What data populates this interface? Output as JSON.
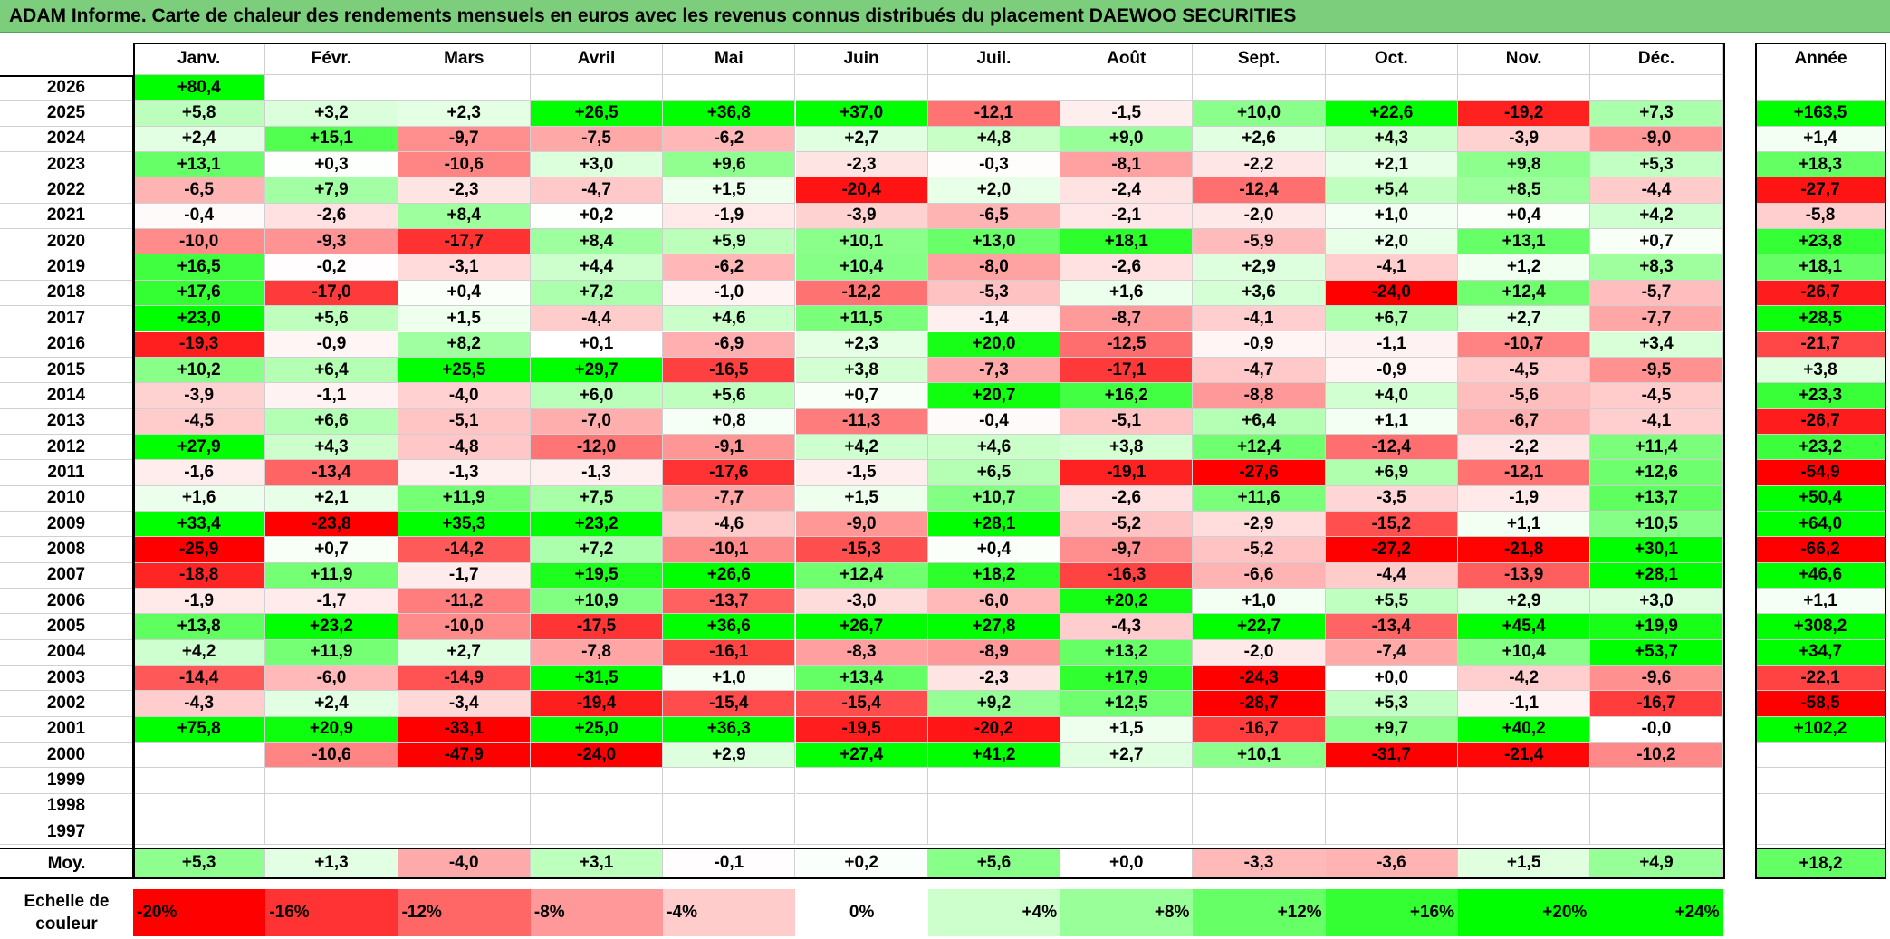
{
  "title": "ADAM Informe. Carte de chaleur des rendements mensuels en euros avec les revenus connus distribués du placement DAEWOO SECURITIES",
  "chart_data": {
    "type": "heatmap",
    "title": "ADAM Informe. Carte de chaleur des rendements mensuels en euros avec les revenus connus distribués du placement DAEWOO SECURITIES",
    "months": [
      "Janv.",
      "Févr.",
      "Mars",
      "Avril",
      "Mai",
      "Juin",
      "Juil.",
      "Août",
      "Sept.",
      "Oct.",
      "Nov.",
      "Déc."
    ],
    "year_header": "Année",
    "avg_label": "Moy.",
    "rows": [
      {
        "year": "2026",
        "values": [
          "+80,4",
          "",
          "",
          "",
          "",
          "",
          "",
          "",
          "",
          "",
          "",
          ""
        ],
        "annual": ""
      },
      {
        "year": "2025",
        "values": [
          "+5,8",
          "+3,2",
          "+2,3",
          "+26,5",
          "+36,8",
          "+37,0",
          "-12,1",
          "-1,5",
          "+10,0",
          "+22,6",
          "-19,2",
          "+7,3"
        ],
        "annual": "+163,5"
      },
      {
        "year": "2024",
        "values": [
          "+2,4",
          "+15,1",
          "-9,7",
          "-7,5",
          "-6,2",
          "+2,7",
          "+4,8",
          "+9,0",
          "+2,6",
          "+4,3",
          "-3,9",
          "-9,0"
        ],
        "annual": "+1,4"
      },
      {
        "year": "2023",
        "values": [
          "+13,1",
          "+0,3",
          "-10,6",
          "+3,0",
          "+9,6",
          "-2,3",
          "-0,3",
          "-8,1",
          "-2,2",
          "+2,1",
          "+9,8",
          "+5,3"
        ],
        "annual": "+18,3"
      },
      {
        "year": "2022",
        "values": [
          "-6,5",
          "+7,9",
          "-2,3",
          "-4,7",
          "+1,5",
          "-20,4",
          "+2,0",
          "-2,4",
          "-12,4",
          "+5,4",
          "+8,5",
          "-4,4"
        ],
        "annual": "-27,7"
      },
      {
        "year": "2021",
        "values": [
          "-0,4",
          "-2,6",
          "+8,4",
          "+0,2",
          "-1,9",
          "-3,9",
          "-6,5",
          "-2,1",
          "-2,0",
          "+1,0",
          "+0,4",
          "+4,2"
        ],
        "annual": "-5,8"
      },
      {
        "year": "2020",
        "values": [
          "-10,0",
          "-9,3",
          "-17,7",
          "+8,4",
          "+5,9",
          "+10,1",
          "+13,0",
          "+18,1",
          "-5,9",
          "+2,0",
          "+13,1",
          "+0,7"
        ],
        "annual": "+23,8"
      },
      {
        "year": "2019",
        "values": [
          "+16,5",
          "-0,2",
          "-3,1",
          "+4,4",
          "-6,2",
          "+10,4",
          "-8,0",
          "-2,6",
          "+2,9",
          "-4,1",
          "+1,2",
          "+8,3"
        ],
        "annual": "+18,1"
      },
      {
        "year": "2018",
        "values": [
          "+17,6",
          "-17,0",
          "+0,4",
          "+7,2",
          "-1,0",
          "-12,2",
          "-5,3",
          "+1,6",
          "+3,6",
          "-24,0",
          "+12,4",
          "-5,7"
        ],
        "annual": "-26,7"
      },
      {
        "year": "2017",
        "values": [
          "+23,0",
          "+5,6",
          "+1,5",
          "-4,4",
          "+4,6",
          "+11,5",
          "-1,4",
          "-8,7",
          "-4,1",
          "+6,7",
          "+2,7",
          "-7,7"
        ],
        "annual": "+28,5"
      },
      {
        "year": "2016",
        "values": [
          "-19,3",
          "-0,9",
          "+8,2",
          "+0,1",
          "-6,9",
          "+2,3",
          "+20,0",
          "-12,5",
          "-0,9",
          "-1,1",
          "-10,7",
          "+3,4"
        ],
        "annual": "-21,7"
      },
      {
        "year": "2015",
        "values": [
          "+10,2",
          "+6,4",
          "+25,5",
          "+29,7",
          "-16,5",
          "+3,8",
          "-7,3",
          "-17,1",
          "-4,7",
          "-0,9",
          "-4,5",
          "-9,5"
        ],
        "annual": "+3,8"
      },
      {
        "year": "2014",
        "values": [
          "-3,9",
          "-1,1",
          "-4,0",
          "+6,0",
          "+5,6",
          "+0,7",
          "+20,7",
          "+16,2",
          "-8,8",
          "+4,0",
          "-5,6",
          "-4,5"
        ],
        "annual": "+23,3"
      },
      {
        "year": "2013",
        "values": [
          "-4,5",
          "+6,6",
          "-5,1",
          "-7,0",
          "+0,8",
          "-11,3",
          "-0,4",
          "-5,1",
          "+6,4",
          "+1,1",
          "-6,7",
          "-4,1"
        ],
        "annual": "-26,7"
      },
      {
        "year": "2012",
        "values": [
          "+27,9",
          "+4,3",
          "-4,8",
          "-12,0",
          "-9,1",
          "+4,2",
          "+4,6",
          "+3,8",
          "+12,4",
          "-12,4",
          "-2,2",
          "+11,4"
        ],
        "annual": "+23,2"
      },
      {
        "year": "2011",
        "values": [
          "-1,6",
          "-13,4",
          "-1,3",
          "-1,3",
          "-17,6",
          "-1,5",
          "+6,5",
          "-19,1",
          "-27,6",
          "+6,9",
          "-12,1",
          "+12,6"
        ],
        "annual": "-54,9"
      },
      {
        "year": "2010",
        "values": [
          "+1,6",
          "+2,1",
          "+11,9",
          "+7,5",
          "-7,7",
          "+1,5",
          "+10,7",
          "-2,6",
          "+11,6",
          "-3,5",
          "-1,9",
          "+13,7"
        ],
        "annual": "+50,4"
      },
      {
        "year": "2009",
        "values": [
          "+33,4",
          "-23,8",
          "+35,3",
          "+23,2",
          "-4,6",
          "-9,0",
          "+28,1",
          "-5,2",
          "-2,9",
          "-15,2",
          "+1,1",
          "+10,5"
        ],
        "annual": "+64,0"
      },
      {
        "year": "2008",
        "values": [
          "-25,9",
          "+0,7",
          "-14,2",
          "+7,2",
          "-10,1",
          "-15,3",
          "+0,4",
          "-9,7",
          "-5,2",
          "-27,2",
          "-21,8",
          "+30,1"
        ],
        "annual": "-66,2"
      },
      {
        "year": "2007",
        "values": [
          "-18,8",
          "+11,9",
          "-1,7",
          "+19,5",
          "+26,6",
          "+12,4",
          "+18,2",
          "-16,3",
          "-6,6",
          "-4,4",
          "-13,9",
          "+28,1"
        ],
        "annual": "+46,6"
      },
      {
        "year": "2006",
        "values": [
          "-1,9",
          "-1,7",
          "-11,2",
          "+10,9",
          "-13,7",
          "-3,0",
          "-6,0",
          "+20,2",
          "+1,0",
          "+5,5",
          "+2,9",
          "+3,0"
        ],
        "annual": "+1,1"
      },
      {
        "year": "2005",
        "values": [
          "+13,8",
          "+23,2",
          "-10,0",
          "-17,5",
          "+36,6",
          "+26,7",
          "+27,8",
          "-4,3",
          "+22,7",
          "-13,4",
          "+45,4",
          "+19,9"
        ],
        "annual": "+308,2"
      },
      {
        "year": "2004",
        "values": [
          "+4,2",
          "+11,9",
          "+2,7",
          "-7,8",
          "-16,1",
          "-8,3",
          "-8,9",
          "+13,2",
          "-2,0",
          "-7,4",
          "+10,4",
          "+53,7"
        ],
        "annual": "+34,7"
      },
      {
        "year": "2003",
        "values": [
          "-14,4",
          "-6,0",
          "-14,9",
          "+31,5",
          "+1,0",
          "+13,4",
          "-2,3",
          "+17,9",
          "-24,3",
          "+0,0",
          "-4,2",
          "-9,6"
        ],
        "annual": "-22,1"
      },
      {
        "year": "2002",
        "values": [
          "-4,3",
          "+2,4",
          "-3,4",
          "-19,4",
          "-15,4",
          "-15,4",
          "+9,2",
          "+12,5",
          "-28,7",
          "+5,3",
          "-1,1",
          "-16,7"
        ],
        "annual": "-58,5"
      },
      {
        "year": "2001",
        "values": [
          "+75,8",
          "+20,9",
          "-33,1",
          "+25,0",
          "+36,3",
          "-19,5",
          "-20,2",
          "+1,5",
          "-16,7",
          "+9,7",
          "+40,2",
          "-0,0"
        ],
        "annual": "+102,2"
      },
      {
        "year": "2000",
        "values": [
          "",
          "-10,6",
          "-47,9",
          "-24,0",
          "+2,9",
          "+27,4",
          "+41,2",
          "+2,7",
          "+10,1",
          "-31,7",
          "-21,4",
          "-10,2"
        ],
        "annual": ""
      },
      {
        "year": "1999",
        "values": [
          "",
          "",
          "",
          "",
          "",
          "",
          "",
          "",
          "",
          "",
          "",
          ""
        ],
        "annual": ""
      },
      {
        "year": "1998",
        "values": [
          "",
          "",
          "",
          "",
          "",
          "",
          "",
          "",
          "",
          "",
          "",
          ""
        ],
        "annual": ""
      },
      {
        "year": "1997",
        "values": [
          "",
          "",
          "",
          "",
          "",
          "",
          "",
          "",
          "",
          "",
          "",
          ""
        ],
        "annual": ""
      }
    ],
    "averages": [
      "+5,3",
      "+1,3",
      "-4,0",
      "+3,1",
      "-0,1",
      "+0,2",
      "+5,6",
      "+0,0",
      "-3,3",
      "-3,6",
      "+1,5",
      "+4,9"
    ],
    "annual_average": "+18,2",
    "scale_title": "Echelle de couleur",
    "scale": [
      {
        "label": "-20%",
        "value": -20
      },
      {
        "label": "-16%",
        "value": -16
      },
      {
        "label": "-12%",
        "value": -12
      },
      {
        "label": "-8%",
        "value": -8
      },
      {
        "label": "-4%",
        "value": -4
      },
      {
        "label": "0%",
        "value": 0
      },
      {
        "label": "+4%",
        "value": 4
      },
      {
        "label": "+8%",
        "value": 8
      },
      {
        "label": "+12%",
        "value": 12
      },
      {
        "label": "+16%",
        "value": 16
      },
      {
        "label": "+20%",
        "value": 20
      },
      {
        "label": "+24%",
        "value": 24
      }
    ],
    "colors": {
      "neg_max": "#ff0000",
      "neutral": "#ffffff",
      "pos_max": "#00ff00",
      "title_bg": "#7ccd7c"
    }
  }
}
